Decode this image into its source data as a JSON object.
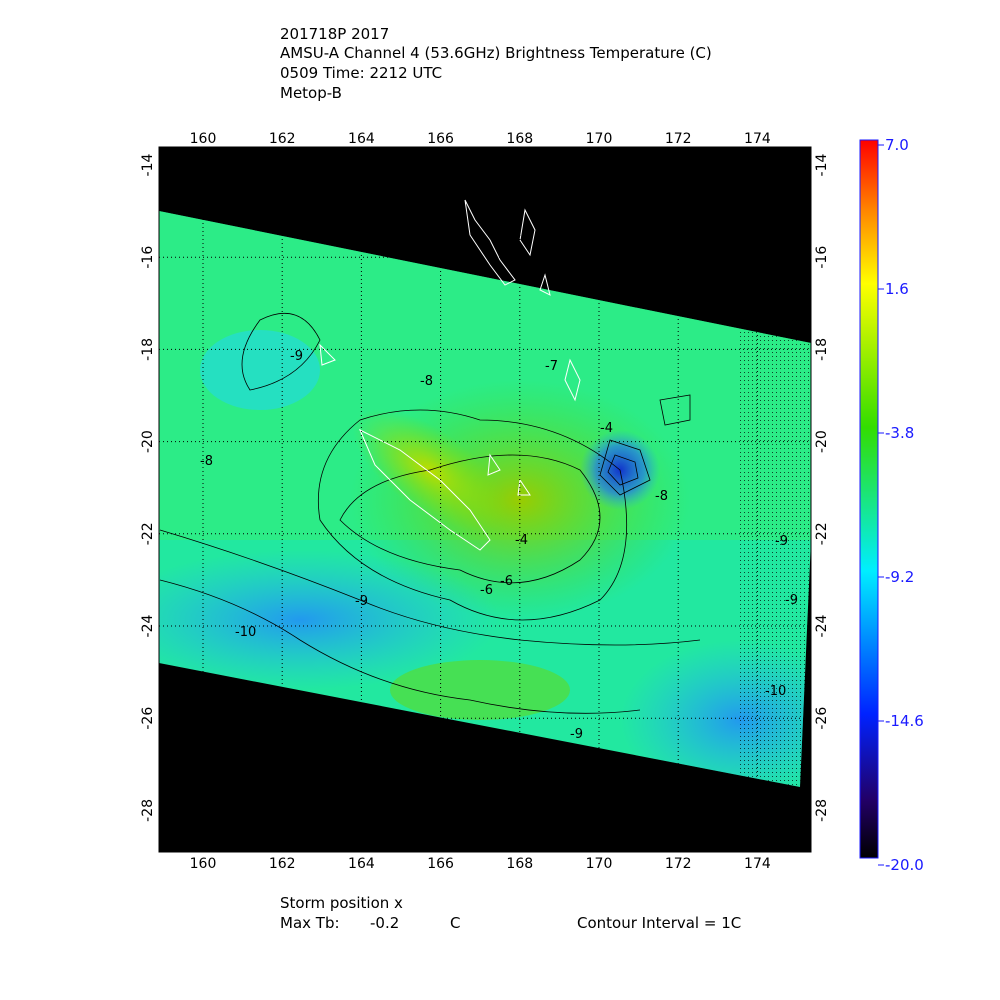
{
  "header": {
    "line1": "201718P 2017",
    "line2": "AMSU-A Channel 4 (53.6GHz) Brightness Temperature (C)",
    "line3": "0509 Time: 2212 UTC",
    "line4": "Metop-B"
  },
  "footer": {
    "storm_position": "Storm position x",
    "max_tb_label": "Max Tb:",
    "max_tb_value": "-0.2",
    "max_tb_unit": "C",
    "contour_interval": "Contour Interval = 1C"
  },
  "map": {
    "lon_ticks": [
      "160",
      "162",
      "164",
      "166",
      "168",
      "170",
      "172",
      "174"
    ],
    "lat_ticks": [
      "-14",
      "-16",
      "-18",
      "-20",
      "-22",
      "-24",
      "-26",
      "-28"
    ],
    "contour_labels": [
      "-9",
      "-8",
      "-8",
      "-7",
      "-8",
      "-4",
      "-4",
      "-6",
      "-6",
      "-9",
      "-10",
      "-9",
      "-9",
      "-9",
      "-10"
    ],
    "grid": "dotted",
    "background_color": "#000000",
    "coastline_color": "#ffffff"
  },
  "colorbar": {
    "labels": [
      "7.0",
      "1.6",
      "-3.8",
      "-9.2",
      "-14.6",
      "-20.0"
    ],
    "colors": [
      "#ff0000",
      "#ff9900",
      "#ffff00",
      "#33dd00",
      "#00ffee",
      "#0033ff",
      "#1a005a",
      "#000000"
    ]
  }
}
